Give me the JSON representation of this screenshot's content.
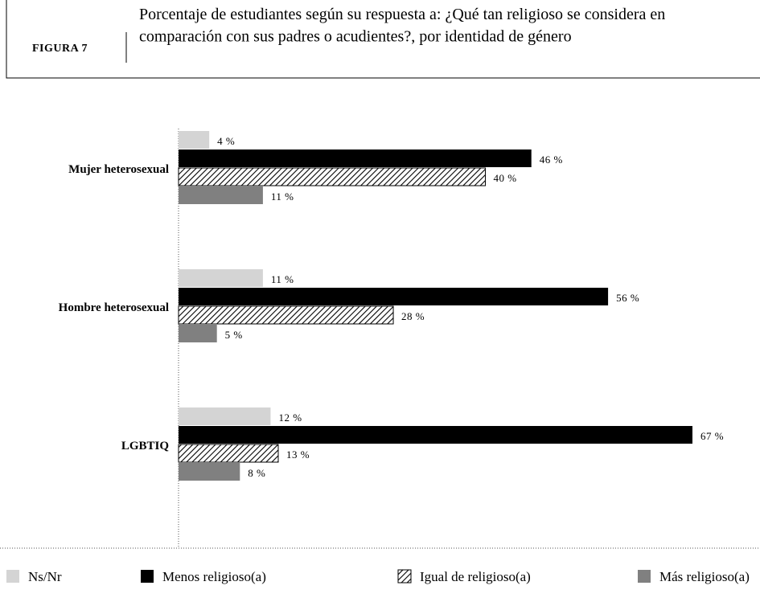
{
  "figure_label": "FIGURA 7",
  "chart_data": {
    "type": "hbar",
    "title": "Porcentaje de estudiantes según su respuesta a: ¿Qué tan religioso se considera en comparación con sus padres o acudientes?, por identidad de género",
    "categories": [
      "Mujer heterosexual",
      "Hombre heterosexual",
      "LGBTIQ"
    ],
    "series": [
      {
        "name": "Ns/Nr",
        "color": "#d4d4d4",
        "values": [
          4,
          11,
          12
        ],
        "value_labels": [
          "4 %",
          "11 %",
          "12 %"
        ]
      },
      {
        "name": "Menos religioso(a)",
        "color": "#000000",
        "values": [
          46,
          56,
          67
        ],
        "value_labels": [
          "46 %",
          "56 %",
          "67 %"
        ]
      },
      {
        "name": "Igual de religioso(a)",
        "color": "#000000",
        "pattern": "hatch",
        "values": [
          40,
          28,
          13
        ],
        "value_labels": [
          "40 %",
          "28 %",
          "13 %"
        ]
      },
      {
        "name": "Más religioso(a)",
        "color": "#808080",
        "values": [
          11,
          5,
          8
        ],
        "value_labels": [
          "11 %",
          "5 %",
          "8 %"
        ]
      }
    ]
  }
}
